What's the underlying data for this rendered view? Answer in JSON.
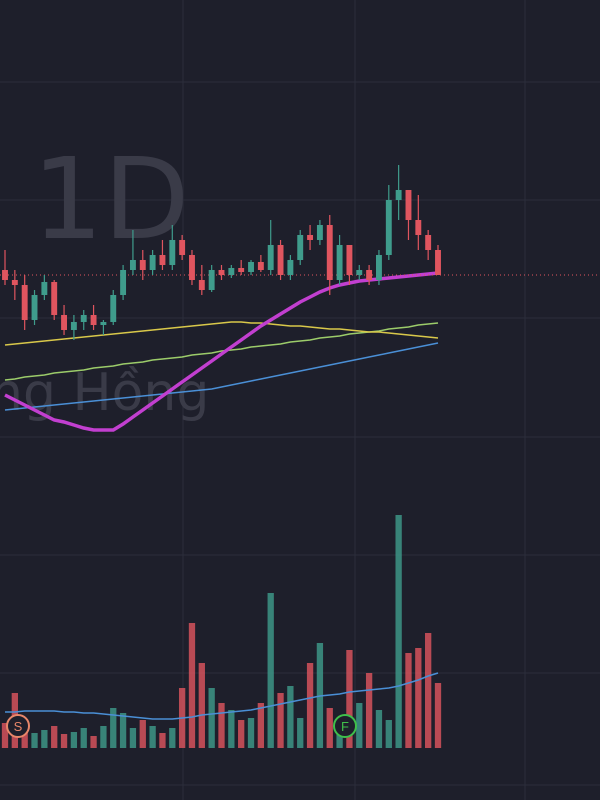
{
  "chart_data": {
    "type": "candlestick",
    "watermark_interval": "1D",
    "watermark_name": "ng Hồng",
    "up_color": "#3f9c8c",
    "down_color": "#e0555f",
    "ylim": [
      10,
      55
    ],
    "volume_lim": [
      0,
      240
    ],
    "open": [
      28,
      27,
      26.5,
      23,
      25.5,
      26.8,
      23.5,
      22,
      22.8,
      23.5,
      22.5,
      22.8,
      25.5,
      28,
      29,
      28,
      29.5,
      28.5,
      31,
      29.5,
      27,
      26,
      28,
      27.5,
      28.2,
      27.8,
      28.8,
      28,
      30.5,
      27.5,
      29,
      31.5,
      31,
      32.5,
      27,
      30.5,
      27.5,
      28,
      27,
      29.5,
      35,
      36,
      33,
      31.5,
      30
    ],
    "high": [
      30,
      28,
      27.5,
      26,
      27.5,
      27,
      24.5,
      23.5,
      24,
      24.5,
      23,
      26,
      28.5,
      32,
      30,
      30,
      31,
      32.5,
      31.5,
      30,
      28.5,
      28.5,
      28.5,
      28.5,
      29,
      29,
      29.5,
      33,
      31,
      29.5,
      32,
      32.5,
      33,
      33.5,
      31.5,
      30.5,
      28.5,
      28.5,
      30,
      36.5,
      38.5,
      36,
      35.5,
      32,
      30.5
    ],
    "low": [
      26.5,
      25,
      22,
      22.5,
      25,
      23,
      21.5,
      21,
      22,
      22,
      21.5,
      22.5,
      25,
      27.5,
      27,
      27.5,
      28,
      28,
      29,
      26.5,
      25.5,
      25.8,
      27,
      27.2,
      27.5,
      27.5,
      27.8,
      27.5,
      27,
      27,
      28.5,
      30,
      30.5,
      25.5,
      26.5,
      26.5,
      27,
      26.5,
      26.5,
      29,
      33,
      31,
      30,
      29,
      27.5
    ],
    "close": [
      27,
      26.5,
      23,
      25.5,
      26.8,
      23.5,
      22,
      22.8,
      23.5,
      22.5,
      22.8,
      25.5,
      28,
      29,
      28,
      29.5,
      28.5,
      31,
      29.5,
      27,
      26,
      28,
      27.5,
      28.2,
      27.8,
      28.8,
      28,
      30.5,
      27.5,
      29,
      31.5,
      31,
      32.5,
      27,
      30.5,
      27.5,
      28,
      27,
      29.5,
      35,
      36,
      33,
      31.5,
      30,
      27.5
    ],
    "volume": [
      25,
      55,
      20,
      15,
      18,
      22,
      14,
      16,
      20,
      12,
      22,
      40,
      35,
      20,
      28,
      22,
      15,
      20,
      60,
      125,
      85,
      60,
      45,
      38,
      28,
      30,
      45,
      155,
      55,
      62,
      30,
      85,
      105,
      40,
      28,
      98,
      45,
      75,
      38,
      28,
      233,
      95,
      100,
      115,
      65
    ],
    "series": [
      {
        "color": "#4a8fd6",
        "values": [
          14.0,
          14.1,
          14.2,
          14.3,
          14.4,
          14.5,
          14.6,
          14.7,
          14.8,
          14.9,
          15.0,
          15.1,
          15.2,
          15.3,
          15.4,
          15.5,
          15.6,
          15.7,
          15.8,
          15.9,
          16.0,
          16.1,
          16.3,
          16.5,
          16.7,
          16.9,
          17.1,
          17.3,
          17.5,
          17.7,
          17.9,
          18.1,
          18.3,
          18.5,
          18.7,
          18.9,
          19.1,
          19.3,
          19.5,
          19.7,
          19.9,
          20.1,
          20.3,
          20.5,
          20.7
        ]
      },
      {
        "color": "#9ccc6a",
        "values": [
          17.0,
          17.1,
          17.3,
          17.4,
          17.5,
          17.7,
          17.8,
          17.9,
          18.0,
          18.2,
          18.3,
          18.4,
          18.6,
          18.7,
          18.8,
          19.0,
          19.1,
          19.2,
          19.3,
          19.5,
          19.6,
          19.7,
          19.9,
          20.0,
          20.1,
          20.3,
          20.4,
          20.5,
          20.6,
          20.8,
          20.9,
          21.0,
          21.2,
          21.3,
          21.4,
          21.6,
          21.7,
          21.8,
          21.9,
          22.1,
          22.2,
          22.3,
          22.5,
          22.6,
          22.7
        ]
      },
      {
        "color": "#d9c84a",
        "values": [
          20.5,
          20.6,
          20.7,
          20.8,
          20.9,
          21.0,
          21.1,
          21.2,
          21.3,
          21.4,
          21.5,
          21.6,
          21.7,
          21.8,
          21.9,
          22.0,
          22.1,
          22.2,
          22.3,
          22.4,
          22.5,
          22.6,
          22.7,
          22.8,
          22.8,
          22.7,
          22.7,
          22.6,
          22.5,
          22.4,
          22.4,
          22.3,
          22.2,
          22.1,
          22.1,
          22.0,
          21.9,
          21.8,
          21.8,
          21.7,
          21.6,
          21.5,
          21.4,
          21.3,
          21.2
        ]
      },
      {
        "color": "#c23fd0",
        "values": [
          15.5,
          15,
          14.5,
          14,
          13.5,
          13,
          12.8,
          12.5,
          12.2,
          12,
          12,
          12,
          12.6,
          13.3,
          14,
          14.7,
          15.4,
          16.1,
          16.8,
          17.5,
          18.2,
          18.9,
          19.6,
          20.3,
          21,
          21.7,
          22.4,
          23,
          23.6,
          24.2,
          24.8,
          25.3,
          25.8,
          26.2,
          26.5,
          26.7,
          26.9,
          27,
          27.1,
          27.2,
          27.3,
          27.4,
          27.5,
          27.6,
          27.7
        ]
      }
    ],
    "volume_ma": {
      "color": "#4a8fd6",
      "values": [
        36,
        36,
        37,
        37,
        37,
        37,
        36,
        36,
        35,
        35,
        34,
        33,
        32,
        31,
        30,
        29,
        29,
        29,
        30,
        31,
        33,
        34,
        35,
        36,
        37,
        38,
        40,
        42,
        44,
        46,
        48,
        50,
        52,
        53,
        54,
        56,
        57,
        58,
        59,
        60,
        62,
        65,
        68,
        72,
        75
      ]
    },
    "markers": [
      {
        "label": "S",
        "color": "#e8876a"
      },
      {
        "label": "F",
        "color": "#3fbf4a"
      }
    ]
  }
}
